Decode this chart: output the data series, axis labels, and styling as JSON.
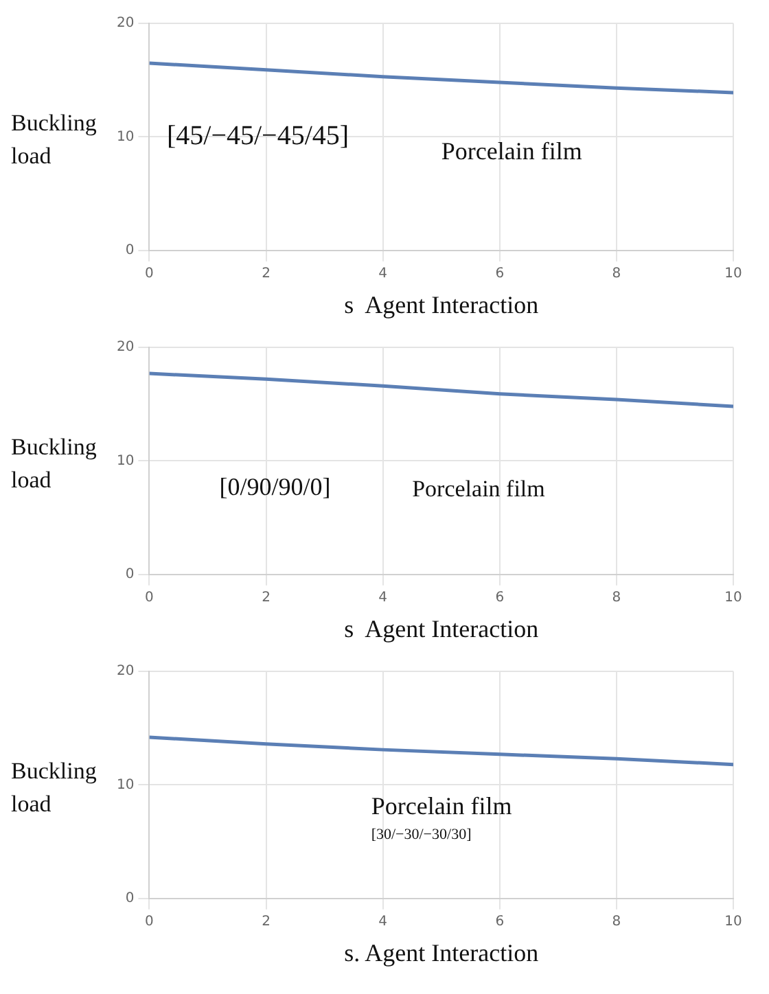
{
  "chart_data": [
    {
      "type": "line",
      "ylabel": "Buckling load",
      "xlabel": "s  Agent Interaction",
      "annotations": [
        "[45/−45/−45/45]",
        "Porcelain film"
      ],
      "x": [
        0,
        2,
        4,
        6,
        8,
        10
      ],
      "series": [
        {
          "color": "#5b7fb5",
          "values": [
            16.5,
            15.9,
            15.3,
            14.8,
            14.3,
            13.9
          ]
        }
      ],
      "xlim": [
        0,
        10
      ],
      "xticks": [
        0,
        2,
        4,
        6,
        8,
        10
      ],
      "ylim": [
        0,
        20
      ],
      "yticks": [
        0,
        10,
        20
      ],
      "grid": true,
      "legend": false
    },
    {
      "type": "line",
      "ylabel": "Buckling load",
      "xlabel": "s  Agent Interaction",
      "annotations": [
        "[0/90/90/0]",
        "Porcelain film"
      ],
      "x": [
        0,
        2,
        4,
        6,
        8,
        10
      ],
      "series": [
        {
          "color": "#5b7fb5",
          "values": [
            17.7,
            17.2,
            16.6,
            15.9,
            15.4,
            14.8
          ]
        }
      ],
      "xlim": [
        0,
        10
      ],
      "xticks": [
        0,
        2,
        4,
        6,
        8,
        10
      ],
      "ylim": [
        0,
        20
      ],
      "yticks": [
        0,
        10,
        20
      ],
      "grid": true,
      "legend": false
    },
    {
      "type": "line",
      "ylabel": "Buckling load",
      "xlabel": "s. Agent Interaction",
      "annotations": [
        "Porcelain film",
        "[30/−30/−30/30]"
      ],
      "x": [
        0,
        2,
        4,
        6,
        8,
        10
      ],
      "series": [
        {
          "color": "#5b7fb5",
          "values": [
            14.2,
            13.6,
            13.1,
            12.7,
            12.3,
            11.8
          ]
        }
      ],
      "xlim": [
        0,
        10
      ],
      "xticks": [
        0,
        2,
        4,
        6,
        8,
        10
      ],
      "ylim": [
        0,
        20
      ],
      "yticks": [
        0,
        10,
        20
      ],
      "grid": true,
      "legend": false
    }
  ]
}
